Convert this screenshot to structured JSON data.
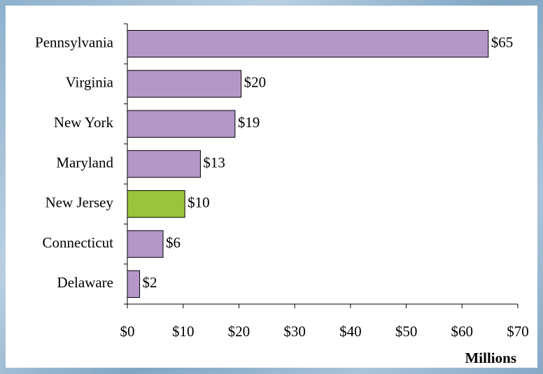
{
  "chart_data": {
    "type": "hbar",
    "categories": [
      "Pennsylvania",
      "Virginia",
      "New York",
      "Maryland",
      "New Jersey",
      "Connecticut",
      "Delaware"
    ],
    "values": [
      64.7,
      20.4,
      19.3,
      13.1,
      10.3,
      6.4,
      2.2
    ],
    "value_labels": [
      "$65",
      "$20",
      "$19",
      "$13",
      "$10",
      "$6",
      "$2"
    ],
    "colors": [
      "#b497c8",
      "#b497c8",
      "#b497c8",
      "#b497c8",
      "#99c43c",
      "#b497c8",
      "#b497c8"
    ],
    "xlim": [
      0,
      70
    ],
    "xticks": [
      {
        "value": 0,
        "label": "$0"
      },
      {
        "value": 10,
        "label": "$10"
      },
      {
        "value": 20,
        "label": "$20"
      },
      {
        "value": 30,
        "label": "$30"
      },
      {
        "value": 40,
        "label": "$40"
      },
      {
        "value": 50,
        "label": "$50"
      },
      {
        "value": 60,
        "label": "$60"
      },
      {
        "value": 70,
        "label": "$70"
      }
    ],
    "xlabel": "Millions"
  }
}
